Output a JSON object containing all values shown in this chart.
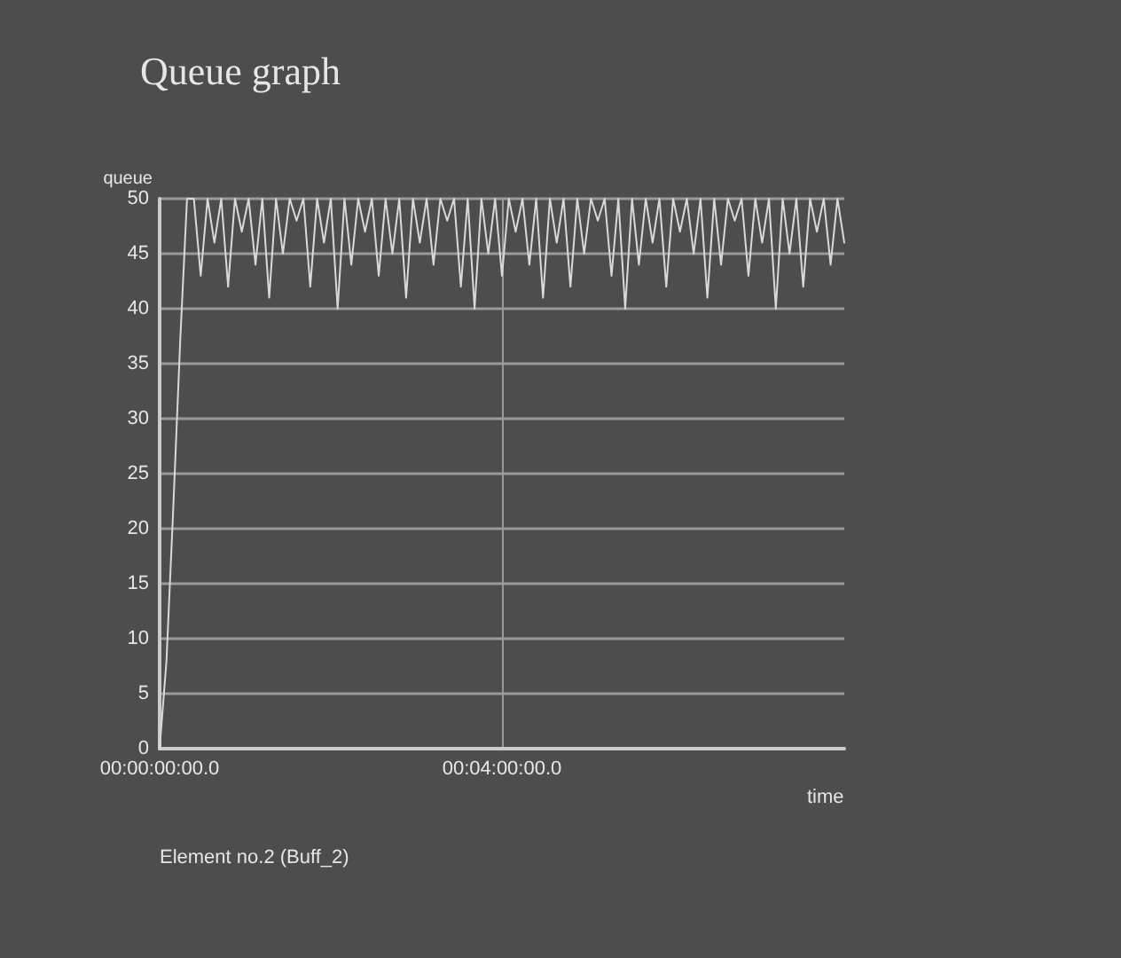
{
  "chart_data": {
    "type": "line",
    "title": "Queue graph",
    "xlabel": "time",
    "ylabel": "queue",
    "annotations": [
      "Element no.2 (Buff_2)"
    ],
    "categories": [
      "00:00:00:00.0",
      null,
      null,
      null,
      null,
      null,
      null,
      null,
      null,
      null,
      null,
      null,
      null,
      null,
      null,
      null,
      null,
      null,
      null,
      null,
      null,
      null,
      null,
      null,
      null,
      null,
      null,
      null,
      null,
      null,
      null,
      null,
      null,
      null,
      null,
      null,
      null,
      null,
      null,
      null,
      null,
      null,
      null,
      null,
      null,
      null,
      null,
      null,
      null,
      null,
      "00:04:00:00.0",
      null,
      null,
      null,
      null,
      null,
      null,
      null,
      null,
      null,
      null,
      null,
      null,
      null,
      null,
      null,
      null,
      null,
      null,
      null,
      null,
      null,
      null,
      null,
      null,
      null,
      null,
      null,
      null,
      null,
      null,
      null,
      null,
      null,
      null,
      null,
      null,
      null,
      null,
      null,
      null,
      null,
      null,
      null,
      null,
      null,
      null,
      null,
      null,
      null,
      null
    ],
    "ylim": [
      0,
      50
    ],
    "yticks": [
      0,
      5,
      10,
      15,
      20,
      25,
      30,
      35,
      40,
      45,
      50
    ],
    "grid": true,
    "marker": "none",
    "line_style": "solid",
    "series": [
      {
        "color": "#d9d9d9",
        "values": [
          0,
          8,
          22,
          37,
          50,
          50,
          43,
          50,
          46,
          50,
          42,
          50,
          47,
          50,
          44,
          50,
          41,
          50,
          45,
          50,
          48,
          50,
          42,
          50,
          46,
          50,
          40,
          50,
          44,
          50,
          47,
          50,
          43,
          50,
          45,
          50,
          41,
          50,
          46,
          50,
          44,
          50,
          48,
          50,
          42,
          50,
          40,
          50,
          45,
          50,
          43,
          50,
          47,
          50,
          44,
          50,
          41,
          50,
          46,
          50,
          42,
          50,
          45,
          50,
          48,
          50,
          43,
          50,
          40,
          50,
          44,
          50,
          46,
          50,
          42,
          50,
          47,
          50,
          45,
          50,
          41,
          50,
          44,
          50,
          48,
          50,
          43,
          50,
          46,
          50,
          40,
          50,
          45,
          50,
          42,
          50,
          47,
          50,
          44,
          50,
          46
        ]
      }
    ]
  }
}
